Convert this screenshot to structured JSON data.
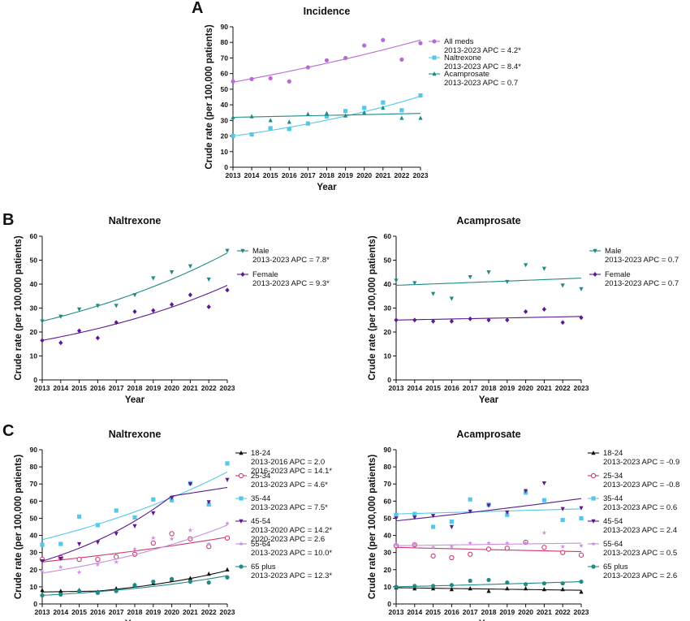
{
  "colors": {
    "purple": "#b76ad4",
    "lightblue": "#55c8e8",
    "teal": "#1f8a86",
    "darkpurple": "#5b1a91",
    "black": "#111111",
    "pink": "#cc3a6e",
    "lilac": "#c98ee0"
  },
  "panels": [
    {
      "letter": "A"
    },
    {
      "letter": "B"
    },
    {
      "letter": "C"
    }
  ],
  "chart_data": [
    {
      "id": "A",
      "type": "scatter",
      "title": "Incidence",
      "xlabel": "Year",
      "ylabel": "Crude rate (per 100,000 patients)",
      "xlim": [
        2013,
        2023
      ],
      "ylim": [
        0,
        90
      ],
      "yticks": [
        0,
        10,
        20,
        30,
        40,
        50,
        60,
        70,
        80,
        90
      ],
      "x": [
        2013,
        2014,
        2015,
        2016,
        2017,
        2018,
        2019,
        2020,
        2021,
        2022,
        2023
      ],
      "series": [
        {
          "name": "All meds",
          "apc": "2013-2023 APC = 4.2*",
          "color": "#b76ad4",
          "marker": "circle",
          "values": [
            55,
            56.5,
            57,
            55,
            64,
            68.5,
            70,
            78,
            81.5,
            69,
            79.5
          ],
          "fit": {
            "type": "exp",
            "start": 54.5,
            "end": 81.5
          }
        },
        {
          "name": "Naltrexone",
          "apc": "2013-2023 APC = 8.4*",
          "color": "#55c8e8",
          "marker": "square",
          "values": [
            20,
            21,
            25,
            24.5,
            28,
            32.5,
            36,
            38,
            41.5,
            36.5,
            46
          ],
          "fit": {
            "type": "exp",
            "start": 20,
            "end": 45.5
          }
        },
        {
          "name": "Acamprosate",
          "apc": "2013-2023 APC = 0.7",
          "color": "#1f8a86",
          "marker": "triangle",
          "values": [
            32,
            32.5,
            30,
            29,
            34,
            34.5,
            33,
            35,
            38,
            31.5,
            31.5
          ],
          "fit": {
            "type": "exp",
            "start": 32,
            "end": 34.5
          }
        }
      ]
    },
    {
      "id": "B-left",
      "type": "scatter",
      "title": "Naltrexone",
      "xlabel": "Year",
      "ylabel": "Crude rate (per 100,000 patients)",
      "xlim": [
        2013,
        2023
      ],
      "ylim": [
        0,
        60
      ],
      "yticks": [
        0,
        10,
        20,
        30,
        40,
        50,
        60
      ],
      "x": [
        2013,
        2014,
        2015,
        2016,
        2017,
        2018,
        2019,
        2020,
        2021,
        2022,
        2023
      ],
      "series": [
        {
          "name": "Male",
          "apc": "2013-2023 APC = 7.8*",
          "color": "#1f8a86",
          "marker": "triangle-down",
          "values": [
            24.5,
            26.5,
            29.5,
            31,
            31,
            35.5,
            42.5,
            45,
            47.5,
            42,
            54
          ],
          "fit": {
            "type": "exp",
            "start": 24.5,
            "end": 53
          }
        },
        {
          "name": "Female",
          "apc": "2013-2023 APC = 9.3*",
          "color": "#5b1a91",
          "marker": "diamond",
          "values": [
            16.5,
            15.5,
            20.5,
            17.5,
            24,
            28.5,
            29,
            31.5,
            35.5,
            30.5,
            37.5
          ],
          "fit": {
            "type": "exp",
            "start": 16.5,
            "end": 39.5
          }
        }
      ]
    },
    {
      "id": "B-right",
      "type": "scatter",
      "title": "Acamprosate",
      "xlabel": "Year",
      "ylabel": "Crude rate (per 100,000 patients)",
      "xlim": [
        2013,
        2023
      ],
      "ylim": [
        0,
        60
      ],
      "yticks": [
        0,
        10,
        20,
        30,
        40,
        50,
        60
      ],
      "x": [
        2013,
        2014,
        2015,
        2016,
        2017,
        2018,
        2019,
        2020,
        2021,
        2022,
        2023
      ],
      "series": [
        {
          "name": "Male",
          "apc": "2013-2023 APC = 0.7",
          "color": "#1f8a86",
          "marker": "triangle-down",
          "values": [
            41.5,
            40.5,
            36,
            34,
            43,
            45,
            41,
            48,
            46.5,
            39.5,
            38
          ],
          "fit": {
            "type": "exp",
            "start": 39.5,
            "end": 42.5
          }
        },
        {
          "name": "Female",
          "apc": "2013-2023 APC = 0.7",
          "color": "#5b1a91",
          "marker": "diamond",
          "values": [
            25,
            25,
            24.5,
            24.5,
            25.5,
            25,
            25,
            28.5,
            29.5,
            24,
            26
          ],
          "fit": {
            "type": "exp",
            "start": 25,
            "end": 26.5
          }
        }
      ]
    },
    {
      "id": "C-left",
      "type": "scatter",
      "title": "Naltrexone",
      "xlabel": "Year",
      "ylabel": "Crude rate (per 100,000 patients)",
      "xlim": [
        2013,
        2023
      ],
      "ylim": [
        0,
        90
      ],
      "yticks": [
        0,
        10,
        20,
        30,
        40,
        50,
        60,
        70,
        80,
        90
      ],
      "x": [
        2013,
        2014,
        2015,
        2016,
        2017,
        2018,
        2019,
        2020,
        2021,
        2022,
        2023
      ],
      "series": [
        {
          "name": "18-24",
          "apc": [
            "2013-2016 APC = 2.0",
            "2016-2023 APC = 14.1*"
          ],
          "color": "#111111",
          "marker": "triangle",
          "values": [
            8,
            7.5,
            8,
            7,
            9,
            11,
            12,
            14,
            15,
            17.5,
            20
          ],
          "fit": {
            "type": "segments",
            "points": [
              [
                2013,
                7
              ],
              [
                2016,
                7.5
              ],
              [
                2023,
                19.5
              ]
            ]
          }
        },
        {
          "name": "25-34",
          "apc": "2013-2023 APC = 4.6*",
          "color": "#cc3a6e",
          "marker": "circle-open",
          "values": [
            26,
            27,
            26,
            26,
            27.5,
            29,
            35.5,
            41,
            38,
            33.5,
            38.5
          ],
          "fit": {
            "type": "exp",
            "start": 24.5,
            "end": 39
          }
        },
        {
          "name": "35-44",
          "apc": "2013-2023 APC = 7.5*",
          "color": "#55c8e8",
          "marker": "square",
          "values": [
            34.5,
            35,
            51,
            46,
            54.5,
            50.5,
            61,
            60.5,
            70.5,
            58,
            82
          ],
          "fit": {
            "type": "exp",
            "start": 37.5,
            "end": 77
          }
        },
        {
          "name": "45-54",
          "apc": [
            "2013-2020 APC = 14.2*",
            "2020-2023 APC = 2.6"
          ],
          "color": "#5b1a91",
          "marker": "triangle-down",
          "values": [
            25,
            26.5,
            35,
            36,
            41,
            45.5,
            53,
            62,
            70,
            59.5,
            72.5
          ],
          "fit": {
            "type": "segments",
            "points": [
              [
                2013,
                25
              ],
              [
                2020,
                63
              ],
              [
                2023,
                68
              ]
            ]
          }
        },
        {
          "name": "55-64",
          "apc": "2013-2023 APC = 10.0*",
          "color": "#c98ee0",
          "marker": "star",
          "values": [
            19,
            21.5,
            18.5,
            23,
            24.5,
            32,
            38.5,
            38,
            43,
            35,
            47
          ],
          "fit": {
            "type": "exp",
            "start": 18,
            "end": 46
          }
        },
        {
          "name": "65 plus",
          "apc": "2013-2023 APC = 12.3*",
          "color": "#1f8a86",
          "marker": "circle",
          "values": [
            5,
            5.5,
            7.5,
            6.5,
            7.5,
            11,
            13,
            14.5,
            13,
            12.5,
            15.5
          ],
          "fit": {
            "type": "exp",
            "start": 5,
            "end": 16.5
          }
        }
      ]
    },
    {
      "id": "C-right",
      "type": "scatter",
      "title": "Acamprosate",
      "xlabel": "Year",
      "ylabel": "Crude rate (per 100,000 patients)",
      "xlim": [
        2013,
        2023
      ],
      "ylim": [
        0,
        90
      ],
      "yticks": [
        0,
        10,
        20,
        30,
        40,
        50,
        60,
        70,
        80,
        90
      ],
      "x": [
        2013,
        2014,
        2015,
        2016,
        2017,
        2018,
        2019,
        2020,
        2021,
        2022,
        2023
      ],
      "series": [
        {
          "name": "18-24",
          "apc": "2013-2023 APC = -0.9",
          "color": "#111111",
          "marker": "triangle",
          "values": [
            9.5,
            9,
            9,
            8.5,
            9,
            7.5,
            9,
            9,
            8.5,
            8.5,
            7
          ],
          "fit": {
            "type": "exp",
            "start": 9.5,
            "end": 8
          }
        },
        {
          "name": "25-34",
          "apc": "2013-2023 APC = -0.8",
          "color": "#cc3a6e",
          "marker": "circle-open",
          "values": [
            34,
            34.5,
            28,
            27,
            29,
            32,
            32.5,
            36,
            33,
            30,
            28.5
          ],
          "fit": {
            "type": "exp",
            "start": 33,
            "end": 30.5
          }
        },
        {
          "name": "35-44",
          "apc": "2013-2023 APC = 0.6",
          "color": "#55c8e8",
          "marker": "square",
          "values": [
            52,
            52.5,
            45,
            48,
            61,
            58,
            52,
            65,
            60.5,
            49,
            50
          ],
          "fit": {
            "type": "exp",
            "start": 52.5,
            "end": 55.5
          }
        },
        {
          "name": "45-54",
          "apc": "2013-2023 APC = 2.4",
          "color": "#5b1a91",
          "marker": "triangle-down",
          "values": [
            50,
            50.5,
            51.5,
            45,
            54,
            57.5,
            53.5,
            66,
            70.5,
            55.5,
            56
          ],
          "fit": {
            "type": "exp",
            "start": 48.5,
            "end": 61.5
          }
        },
        {
          "name": "55-64",
          "apc": "2013-2023 APC = 0.5",
          "color": "#c98ee0",
          "marker": "star",
          "values": [
            34.5,
            35,
            33,
            33.5,
            35.5,
            35.5,
            35.5,
            35.5,
            41.5,
            33.5,
            34
          ],
          "fit": {
            "type": "exp",
            "start": 34,
            "end": 35.5
          }
        },
        {
          "name": "65 plus",
          "apc": "2013-2023 APC = 2.6",
          "color": "#1f8a86",
          "marker": "circle",
          "values": [
            10,
            10.5,
            10.5,
            11,
            13.5,
            14,
            12.5,
            11.5,
            12,
            12,
            13
          ],
          "fit": {
            "type": "exp",
            "start": 10,
            "end": 13
          }
        }
      ]
    }
  ]
}
